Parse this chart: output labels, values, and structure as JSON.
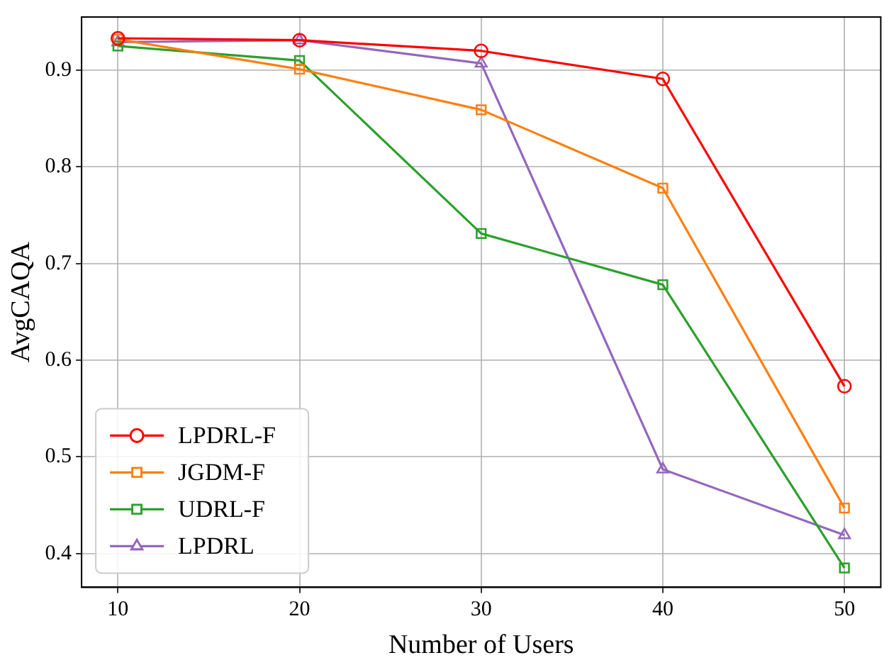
{
  "chart_data": {
    "type": "line",
    "xlabel": "Number of Users",
    "ylabel": "AvgCAQA",
    "x": [
      10,
      20,
      30,
      40,
      50
    ],
    "series": [
      {
        "name": "LPDRL-F",
        "color": "#ff0000",
        "marker": "circle",
        "values": [
          0.933,
          0.931,
          0.92,
          0.891,
          0.573
        ]
      },
      {
        "name": "JGDM-F",
        "color": "#ff7f0e",
        "marker": "square",
        "values": [
          0.932,
          0.901,
          0.859,
          0.778,
          0.447
        ]
      },
      {
        "name": "UDRL-F",
        "color": "#2ca02c",
        "marker": "square",
        "values": [
          0.925,
          0.91,
          0.731,
          0.678,
          0.385
        ]
      },
      {
        "name": "LPDRL",
        "color": "#9467bd",
        "marker": "triangle",
        "values": [
          0.929,
          0.931,
          0.907,
          0.487,
          0.419
        ]
      }
    ],
    "xlim": [
      8,
      52
    ],
    "xticks": [
      10,
      20,
      30,
      40,
      50
    ],
    "ylim": [
      0.365,
      0.955
    ],
    "yticks": [
      {
        "value": 0.4,
        "label": "0.4"
      },
      {
        "value": 0.5,
        "label": "0.5"
      },
      {
        "value": 0.6,
        "label": "0.6"
      },
      {
        "value": 0.7,
        "label": "0.7"
      },
      {
        "value": 0.8,
        "label": "0.8"
      },
      {
        "value": 0.9,
        "label": "0.9"
      }
    ],
    "grid": true,
    "line_style": "solid",
    "legend": "bottom left"
  }
}
